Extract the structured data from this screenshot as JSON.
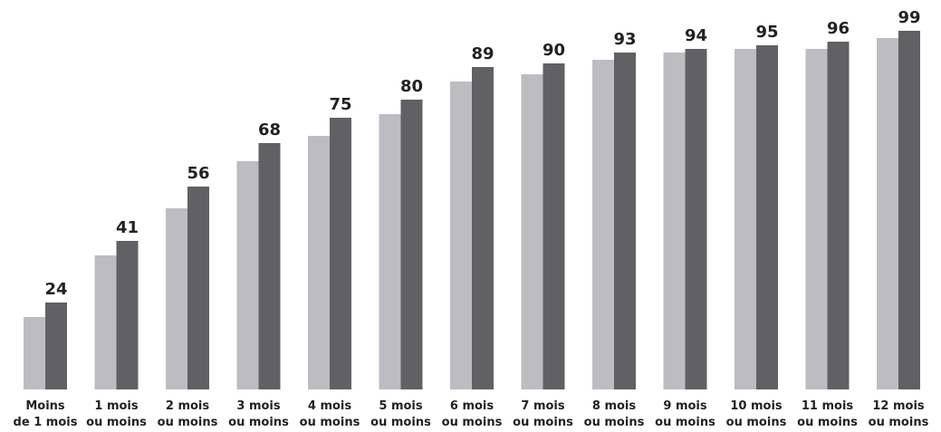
{
  "chart_data": {
    "type": "bar",
    "categories": [
      [
        "Moins",
        "de 1 mois"
      ],
      [
        "1 mois",
        "ou moins"
      ],
      [
        "2 mois",
        "ou moins"
      ],
      [
        "3 mois",
        "ou moins"
      ],
      [
        "4 mois",
        "ou moins"
      ],
      [
        "5 mois",
        "ou moins"
      ],
      [
        "6 mois",
        "ou moins"
      ],
      [
        "7 mois",
        "ou moins"
      ],
      [
        "8 mois",
        "ou moins"
      ],
      [
        "9 mois",
        "ou moins"
      ],
      [
        "10 mois",
        "ou moins"
      ],
      [
        "11 mois",
        "ou moins"
      ],
      [
        "12 mois",
        "ou moins"
      ]
    ],
    "series": [
      {
        "values": [
          20,
          37,
          50,
          63,
          70,
          76,
          85,
          87,
          91,
          93,
          94,
          94,
          97
        ],
        "color": "#bdbdc1",
        "labeled": false
      },
      {
        "values": [
          24,
          41,
          56,
          68,
          75,
          80,
          89,
          90,
          93,
          94,
          95,
          96,
          99
        ],
        "color": "#616163",
        "labeled": true
      }
    ],
    "ylim": [
      0,
      100
    ],
    "grid": false,
    "legend": "none"
  }
}
